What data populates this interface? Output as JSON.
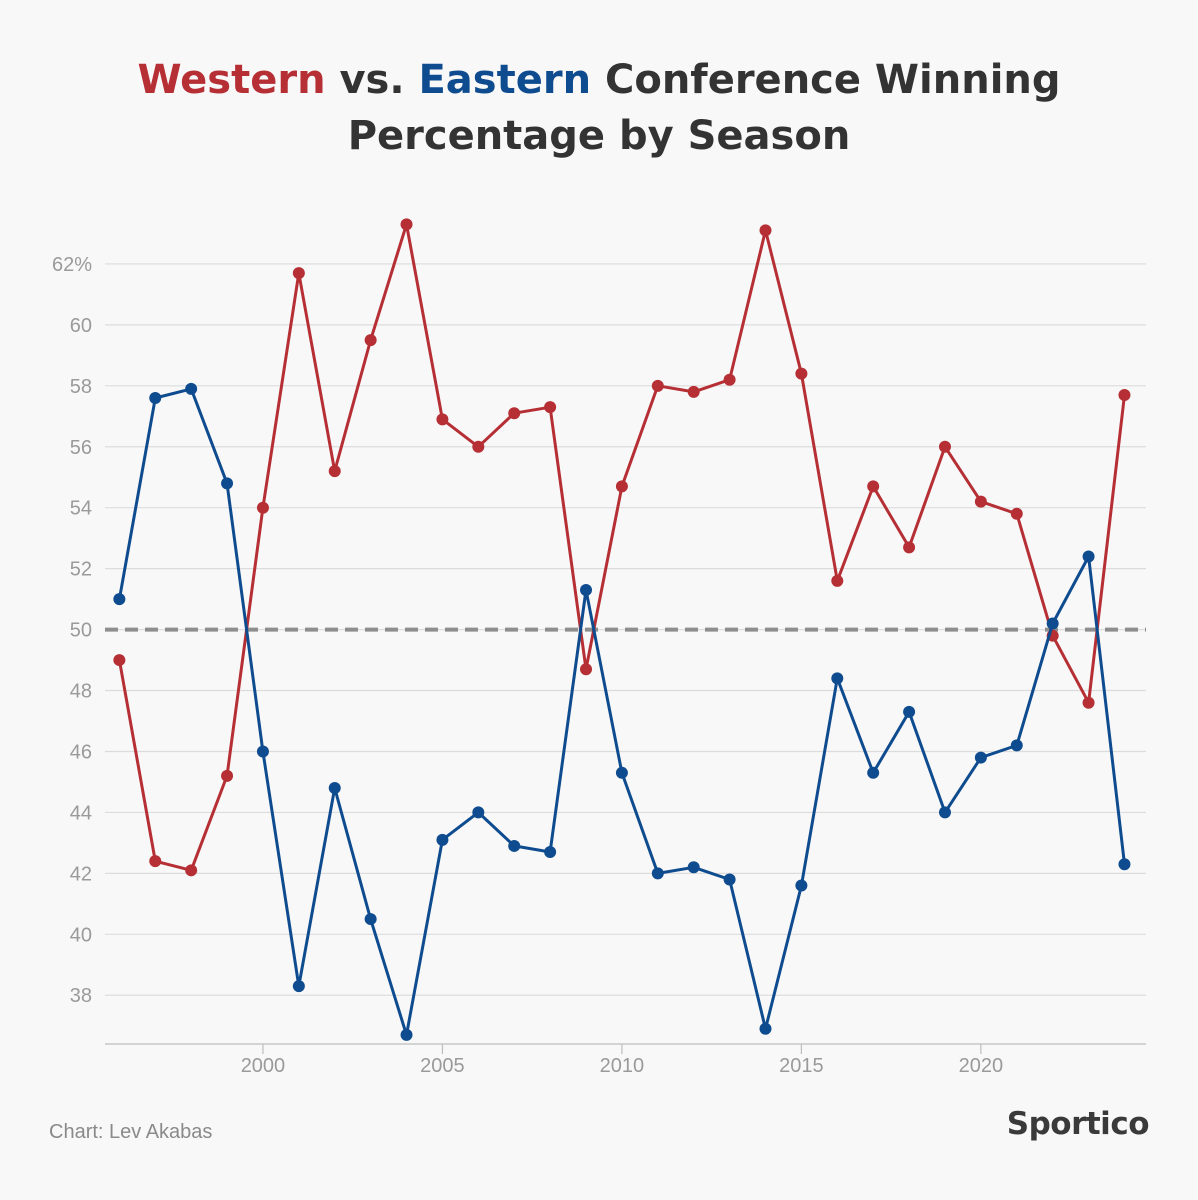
{
  "chart_data": {
    "type": "line",
    "title_parts": {
      "west": "Western",
      "vs": " vs. ",
      "east": "Eastern",
      "rest": " Conference Winning Percentage by Season"
    },
    "xlabel": "",
    "ylabel": "",
    "x_ticks": [
      2000,
      2005,
      2010,
      2015,
      2020
    ],
    "y_ticks": [
      38,
      40,
      42,
      44,
      46,
      48,
      50,
      52,
      54,
      56,
      58,
      60,
      62
    ],
    "y_tick_labels": [
      "38",
      "40",
      "42",
      "44",
      "46",
      "48",
      "50",
      "52",
      "54",
      "56",
      "58",
      "60",
      "62%"
    ],
    "xlim": [
      1995.6,
      2024.6
    ],
    "ylim": [
      36.4,
      64.0
    ],
    "reference_line": 50,
    "grid": true,
    "x": [
      1996,
      1997,
      1998,
      1999,
      2000,
      2001,
      2002,
      2003,
      2004,
      2005,
      2006,
      2007,
      2008,
      2009,
      2010,
      2011,
      2012,
      2013,
      2014,
      2015,
      2016,
      2017,
      2018,
      2019,
      2020,
      2021,
      2022,
      2023,
      2024
    ],
    "series": [
      {
        "key": "west",
        "color": "#b52f35",
        "values": [
          49.0,
          42.4,
          42.1,
          45.2,
          54.0,
          61.7,
          55.2,
          59.5,
          63.3,
          56.9,
          56.0,
          57.1,
          57.3,
          48.7,
          54.7,
          58.0,
          57.8,
          58.2,
          63.1,
          58.4,
          51.6,
          54.7,
          52.7,
          56.0,
          54.2,
          53.8,
          49.8,
          47.6,
          57.7
        ]
      },
      {
        "key": "east",
        "color": "#0f4c8f",
        "values": [
          51.0,
          57.6,
          57.9,
          54.8,
          46.0,
          38.3,
          44.8,
          40.5,
          36.7,
          43.1,
          44.0,
          42.9,
          42.7,
          51.3,
          45.3,
          42.0,
          42.2,
          41.8,
          36.9,
          41.6,
          48.4,
          45.3,
          47.3,
          44.0,
          45.8,
          46.2,
          50.2,
          52.4,
          42.3
        ]
      }
    ]
  },
  "credit": "Chart: Lev Akabas",
  "brand": "Sportico"
}
